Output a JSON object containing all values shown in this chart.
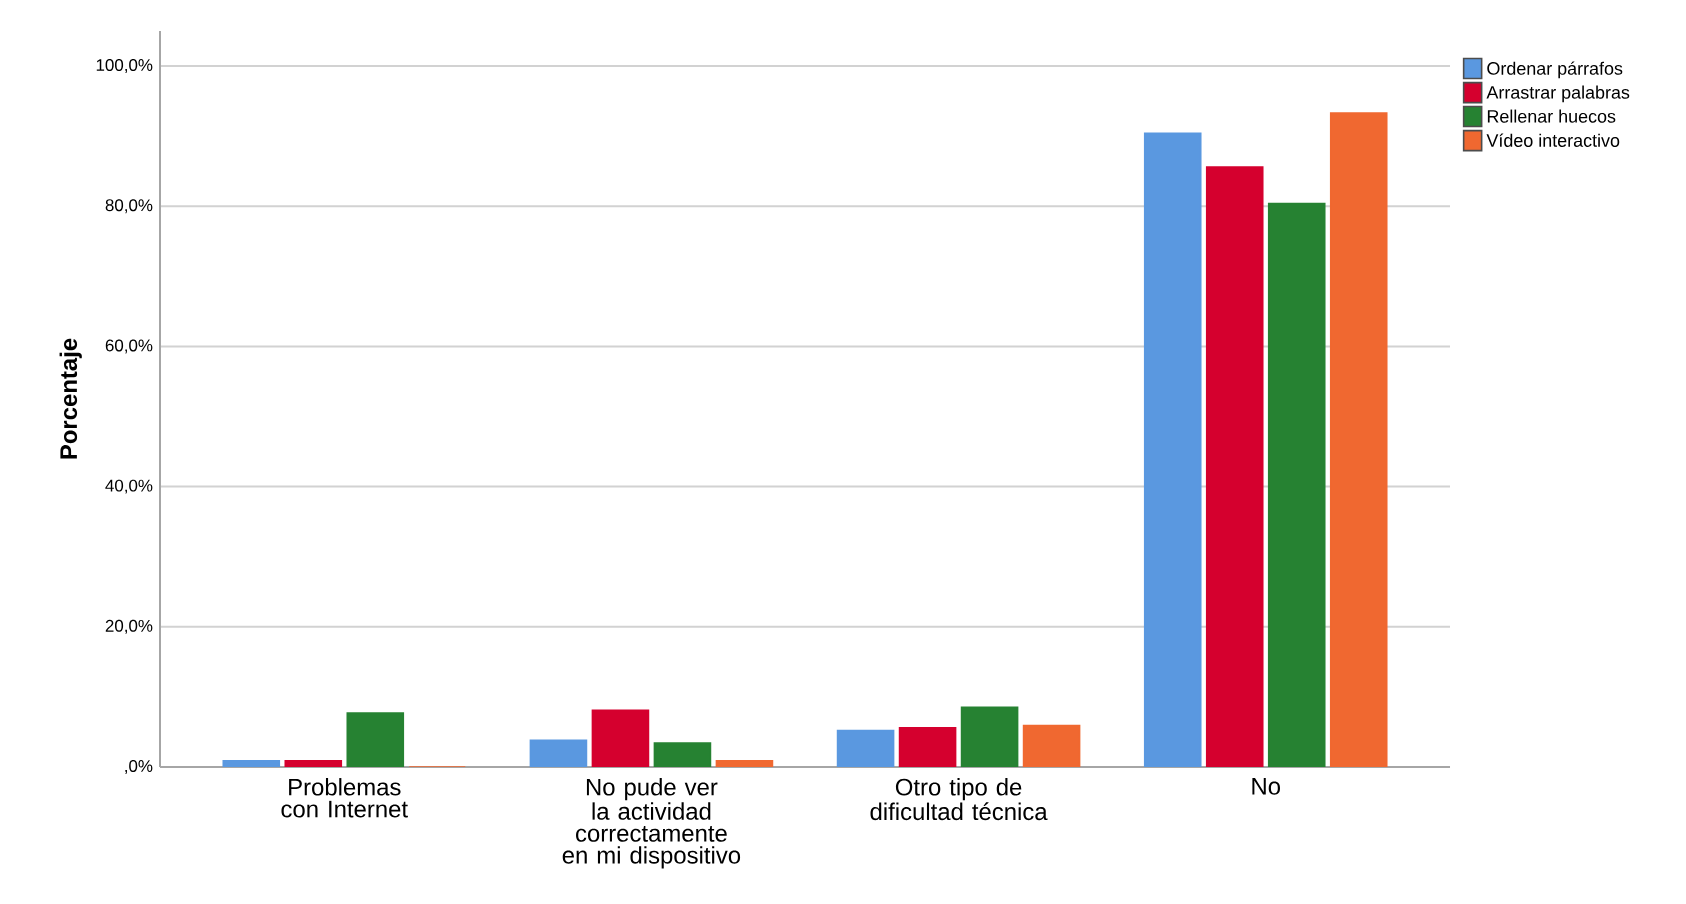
{
  "chart_data": {
    "type": "bar",
    "ylabel": "Porcentaje",
    "categories": [
      "Problemas con Internet",
      "No pude ver la actividad correctamente en mi dispositivo",
      "Otro tipo de dificultad técnica",
      "No"
    ],
    "series": [
      {
        "name": "Ordenar párrafos",
        "color": "#5a98e0",
        "values": [
          0.9,
          3.8,
          5.2,
          90.4
        ]
      },
      {
        "name": "Arrastrar palabras",
        "color": "#d5002e",
        "values": [
          0.9,
          8.1,
          5.6,
          85.6
        ]
      },
      {
        "name": "Rellenar huecos",
        "color": "#268232",
        "values": [
          7.7,
          3.4,
          8.5,
          80.4
        ]
      },
      {
        "name": "Vídeo interactivo",
        "color": "#f06830",
        "values": [
          0,
          0.9,
          5.9,
          93.3
        ]
      }
    ],
    "ylim": [
      0,
      105
    ],
    "yticks": [
      {
        "value": 0,
        "label": ",0%"
      },
      {
        "value": 20,
        "label": "20,0%"
      },
      {
        "value": 40,
        "label": "40,0%"
      },
      {
        "value": 60,
        "label": "60,0%"
      },
      {
        "value": 80,
        "label": "80,0%"
      },
      {
        "value": 100,
        "label": "100,0%"
      }
    ],
    "grid": "y",
    "legend": "top right"
  }
}
